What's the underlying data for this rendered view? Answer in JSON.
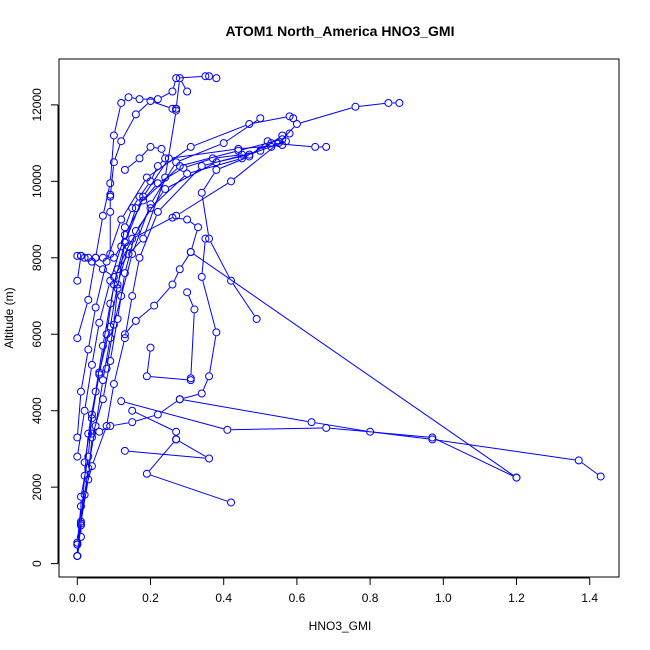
{
  "chart_data": {
    "type": "line",
    "title": "ATOM1 North_America HNO3_GMI",
    "xlabel": "HNO3_GMI",
    "ylabel": "Altitude (m)",
    "xlim": [
      -0.05,
      1.48
    ],
    "ylim": [
      -350,
      13200
    ],
    "xticks": [
      0.0,
      0.2,
      0.4,
      0.6,
      0.8,
      1.0,
      1.2,
      1.4
    ],
    "xtick_labels": [
      "0.0",
      "0.2",
      "0.4",
      "0.6",
      "0.8",
      "1.0",
      "1.2",
      "1.4"
    ],
    "yticks": [
      0,
      2000,
      4000,
      6000,
      8000,
      10000,
      12000
    ],
    "ytick_labels": [
      "0",
      "2000",
      "4000",
      "6000",
      "8000",
      "10000",
      "12000"
    ],
    "grid": false,
    "legend": "none",
    "marker": "open-circle",
    "color": "#0000ff",
    "series": [
      {
        "points": [
          [
            0.0,
            200
          ],
          [
            0.0,
            500
          ],
          [
            0.01,
            1050
          ],
          [
            0.02,
            1800
          ],
          [
            0.03,
            2500
          ],
          [
            0.05,
            3600
          ],
          [
            0.07,
            4800
          ],
          [
            0.09,
            5900
          ],
          [
            0.12,
            7000
          ],
          [
            0.15,
            8100
          ],
          [
            0.2,
            9400
          ],
          [
            0.27,
            10500
          ],
          [
            0.4,
            11000
          ],
          [
            0.5,
            11650
          ]
        ]
      },
      {
        "points": [
          [
            0.0,
            200
          ],
          [
            0.01,
            700
          ],
          [
            0.01,
            1750
          ],
          [
            0.03,
            2800
          ],
          [
            0.04,
            3900
          ],
          [
            0.06,
            4950
          ],
          [
            0.08,
            6000
          ],
          [
            0.1,
            7300
          ],
          [
            0.13,
            8400
          ],
          [
            0.18,
            9600
          ],
          [
            0.25,
            10600
          ],
          [
            0.44,
            10850
          ],
          [
            0.56,
            10950
          ]
        ]
      },
      {
        "points": [
          [
            0.0,
            200
          ],
          [
            0.01,
            1000
          ],
          [
            0.02,
            2300
          ],
          [
            0.03,
            3400
          ],
          [
            0.05,
            4500
          ],
          [
            0.07,
            5700
          ],
          [
            0.09,
            6800
          ],
          [
            0.11,
            7700
          ],
          [
            0.15,
            8500
          ],
          [
            0.27,
            9100
          ],
          [
            0.42,
            10000
          ],
          [
            0.55,
            11000
          ],
          [
            0.6,
            11500
          ],
          [
            0.76,
            11950
          ],
          [
            0.85,
            12050
          ],
          [
            0.88,
            12050
          ]
        ]
      },
      {
        "points": [
          [
            0.0,
            500
          ],
          [
            0.01,
            1100
          ],
          [
            0.03,
            2200
          ],
          [
            0.04,
            3300
          ],
          [
            0.07,
            4300
          ],
          [
            0.09,
            5300
          ],
          [
            0.11,
            6400
          ],
          [
            0.13,
            7600
          ],
          [
            0.16,
            8700
          ],
          [
            0.24,
            9800
          ],
          [
            0.38,
            10500
          ],
          [
            0.47,
            10700
          ],
          [
            0.57,
            11050
          ]
        ]
      },
      {
        "points": [
          [
            0.0,
            550
          ],
          [
            0.01,
            1500
          ],
          [
            0.04,
            2550
          ],
          [
            0.08,
            3600
          ],
          [
            0.1,
            4700
          ],
          [
            0.13,
            5900
          ],
          [
            0.15,
            7000
          ],
          [
            0.17,
            8000
          ],
          [
            0.22,
            9200
          ],
          [
            0.34,
            10400
          ],
          [
            0.5,
            10800
          ],
          [
            0.56,
            11200
          ]
        ]
      },
      {
        "points": [
          [
            0.02,
            2650
          ],
          [
            0.04,
            3800
          ],
          [
            0.06,
            5000
          ],
          [
            0.09,
            6200
          ],
          [
            0.11,
            7300
          ],
          [
            0.14,
            8300
          ],
          [
            0.2,
            9300
          ],
          [
            0.3,
            10200
          ],
          [
            0.45,
            10600
          ],
          [
            0.53,
            11000
          ],
          [
            0.65,
            10900
          ],
          [
            0.68,
            10900
          ]
        ]
      },
      {
        "points": [
          [
            0.0,
            2800
          ],
          [
            0.02,
            4000
          ],
          [
            0.04,
            5200
          ],
          [
            0.06,
            6300
          ],
          [
            0.09,
            7400
          ],
          [
            0.13,
            8600
          ],
          [
            0.18,
            9500
          ],
          [
            0.28,
            10400
          ],
          [
            0.44,
            10800
          ],
          [
            0.56,
            11100
          ],
          [
            0.58,
            11250
          ]
        ]
      },
      {
        "points": [
          [
            0.0,
            3300
          ],
          [
            0.01,
            4500
          ],
          [
            0.03,
            5600
          ],
          [
            0.05,
            6700
          ],
          [
            0.08,
            7900
          ],
          [
            0.12,
            9000
          ],
          [
            0.19,
            10100
          ],
          [
            0.31,
            10900
          ],
          [
            0.47,
            11500
          ],
          [
            0.58,
            11700
          ],
          [
            0.59,
            11650
          ]
        ]
      },
      {
        "points": [
          [
            0.08,
            5100
          ],
          [
            0.1,
            6250
          ],
          [
            0.11,
            7200
          ],
          [
            0.13,
            8400
          ],
          [
            0.16,
            9300
          ],
          [
            0.22,
            9950
          ],
          [
            0.29,
            10350
          ],
          [
            0.37,
            10600
          ],
          [
            0.45,
            10700
          ]
        ]
      },
      {
        "points": [
          [
            0.0,
            5900
          ],
          [
            0.03,
            6900
          ],
          [
            0.05,
            8000
          ],
          [
            0.07,
            9100
          ],
          [
            0.09,
            9950
          ],
          [
            0.1,
            11200
          ],
          [
            0.12,
            12050
          ],
          [
            0.14,
            12200
          ],
          [
            0.17,
            12150
          ],
          [
            0.22,
            12150
          ],
          [
            0.26,
            12350
          ],
          [
            0.27,
            12700
          ],
          [
            0.35,
            12750
          ],
          [
            0.36,
            12750
          ],
          [
            0.38,
            12700
          ]
        ]
      },
      {
        "points": [
          [
            0.0,
            7400
          ],
          [
            0.01,
            8050
          ],
          [
            0.03,
            8000
          ],
          [
            0.05,
            8000
          ],
          [
            0.07,
            8000
          ],
          [
            0.09,
            8100
          ],
          [
            0.09,
            9200
          ],
          [
            0.09,
            9650
          ],
          [
            0.09,
            9600
          ],
          [
            0.1,
            10500
          ],
          [
            0.12,
            11050
          ],
          [
            0.16,
            11750
          ],
          [
            0.2,
            12100
          ],
          [
            0.26,
            11900
          ],
          [
            0.27,
            11900
          ]
        ]
      },
      {
        "points": [
          [
            0.0,
            8050
          ],
          [
            0.01,
            8050
          ],
          [
            0.02,
            8000
          ],
          [
            0.04,
            7900
          ],
          [
            0.07,
            7700
          ],
          [
            0.1,
            7500
          ],
          [
            0.14,
            8100
          ],
          [
            0.18,
            8500
          ],
          [
            0.24,
            10100
          ],
          [
            0.27,
            11850
          ],
          [
            0.27,
            11900
          ],
          [
            0.28,
            12700
          ],
          [
            0.3,
            12350
          ]
        ]
      },
      {
        "points": [
          [
            0.13,
            10300
          ],
          [
            0.17,
            10600
          ],
          [
            0.2,
            10900
          ],
          [
            0.23,
            10850
          ],
          [
            0.24,
            10600
          ],
          [
            0.22,
            10400
          ],
          [
            0.2,
            10000
          ],
          [
            0.17,
            9600
          ],
          [
            0.15,
            9300
          ],
          [
            0.13,
            8800
          ],
          [
            0.12,
            8300
          ],
          [
            0.1,
            8000
          ]
        ]
      },
      {
        "points": [
          [
            0.26,
            9050
          ],
          [
            0.3,
            9000
          ],
          [
            0.33,
            8800
          ],
          [
            0.31,
            8150
          ],
          [
            0.28,
            7700
          ],
          [
            0.26,
            7300
          ],
          [
            0.21,
            6750
          ],
          [
            0.16,
            6350
          ],
          [
            0.13,
            6000
          ]
        ]
      },
      {
        "points": [
          [
            0.35,
            8500
          ],
          [
            0.34,
            7500
          ],
          [
            0.38,
            6050
          ],
          [
            0.36,
            4900
          ],
          [
            0.34,
            4450
          ],
          [
            0.28,
            4300
          ],
          [
            0.22,
            3900
          ],
          [
            0.15,
            3700
          ],
          [
            0.09,
            3600
          ],
          [
            0.06,
            3450
          ],
          [
            0.04,
            3400
          ]
        ]
      },
      {
        "points": [
          [
            0.3,
            7100
          ],
          [
            0.32,
            6650
          ],
          [
            0.31,
            4850
          ],
          [
            0.31,
            4800
          ],
          [
            0.19,
            4900
          ],
          [
            0.2,
            5650
          ]
        ]
      },
      {
        "points": [
          [
            0.28,
            4300
          ],
          [
            0.64,
            3700
          ],
          [
            0.8,
            3450
          ],
          [
            0.97,
            3250
          ],
          [
            1.37,
            2700
          ],
          [
            1.43,
            2280
          ]
        ]
      },
      {
        "points": [
          [
            0.12,
            4250
          ],
          [
            0.41,
            3500
          ],
          [
            0.68,
            3550
          ],
          [
            0.97,
            3300
          ],
          [
            1.2,
            2250
          ]
        ]
      },
      {
        "points": [
          [
            0.15,
            4000
          ],
          [
            0.27,
            3450
          ],
          [
            0.27,
            3250
          ],
          [
            0.36,
            2750
          ],
          [
            0.13,
            2950
          ]
        ]
      },
      {
        "points": [
          [
            0.31,
            8150
          ],
          [
            1.2,
            2250
          ]
        ]
      },
      {
        "points": [
          [
            0.42,
            1600
          ],
          [
            0.19,
            2350
          ],
          [
            0.27,
            3250
          ]
        ]
      },
      {
        "points": [
          [
            0.49,
            6400
          ],
          [
            0.42,
            7400
          ],
          [
            0.36,
            8500
          ],
          [
            0.34,
            9700
          ],
          [
            0.38,
            10300
          ],
          [
            0.47,
            10650
          ],
          [
            0.52,
            11050
          ],
          [
            0.53,
            10900
          ]
        ]
      }
    ]
  }
}
